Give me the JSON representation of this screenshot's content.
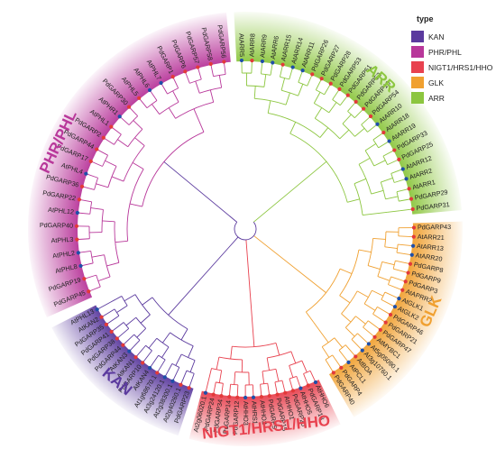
{
  "legend": {
    "title": "type",
    "items": [
      {
        "label": "KAN",
        "color": "#5b3a9e"
      },
      {
        "label": "PHR/PHL",
        "color": "#b8379a"
      },
      {
        "label": "NIGT1/HRS1/HHO",
        "color": "#e8424f"
      },
      {
        "label": "GLK",
        "color": "#f0a030"
      },
      {
        "label": "ARR",
        "color": "#8cc63f"
      }
    ]
  },
  "clades": [
    {
      "key": "ARR",
      "label": "ARR",
      "color": "#8cc63f",
      "leaves": [
        "AtARR5",
        "AtARR8",
        "AtARR9",
        "AtARR6",
        "AtARR15",
        "AtARR14",
        "AtARR11",
        "PdGARP26",
        "PdGARP27",
        "PdGARP28",
        "PdGARP53",
        "PdGARP51",
        "PdGARP52",
        "PdGARP18",
        "PdGARP54",
        "AtARR10",
        "AtARR18",
        "AtARR19",
        "PdGARP33",
        "PdGARP25",
        "AtARR12",
        "AtARR2",
        "AtARR1",
        "PdGARP29",
        "PdGARP31"
      ]
    },
    {
      "key": "GLK",
      "label": "GLK",
      "color": "#f0a030",
      "leaves": [
        "PdGARP43",
        "AtARR21",
        "AtARR13",
        "AtARR20",
        "PdGARP8",
        "PdGARP9",
        "PdGARP3",
        "AtAPRR2",
        "AtGLK1",
        "AtGLK2",
        "PdGARP46",
        "PdGARP21",
        "PdGARP47",
        "AtMYBC1",
        "At5g05090.1",
        "At3g10760.1",
        "AtBOA",
        "AtPCL1",
        "PdGARP4",
        "PdGARP40"
      ]
    },
    {
      "key": "NIGT",
      "label": "NIGT1/HRS1/HHO",
      "color": "#e8424f",
      "leaves": [
        "AtHHO6",
        "PdGARP13",
        "AtHHO5",
        "PdGARP20",
        "AtHHO1",
        "PdGARP15",
        "PdGARP5",
        "AtHHO2",
        "AtHRS1",
        "AtHHO3",
        "PdGARP12",
        "PdGARP14",
        "PdGARP34",
        "PdGARP24",
        "At2g06020.1"
      ]
    },
    {
      "key": "KAN",
      "label": "KAN",
      "color": "#5b3a9e",
      "leaves": [
        "PdGARP23",
        "At2g40260.1",
        "At2g38300.1",
        "At3g24120.1",
        "At1g68670.1",
        "AtKAN4",
        "PdGARP10",
        "AtKAN1",
        "AtKAN3",
        "PdGARP44",
        "PdGARP38",
        "PdGARP41",
        "PdGARP35",
        "AtKAN2",
        "AtPHL13"
      ]
    },
    {
      "key": "PHR",
      "label": "PHR/PHL",
      "color": "#b8379a",
      "leaves": [
        "PdGARP45",
        "PdGARP19",
        "AtPHL8",
        "AtPHL2",
        "AtPHL3",
        "PdGARP40",
        "AtPHL12",
        "PdGARP22",
        "PdGARP36",
        "AtPHL4",
        "PdGARP17",
        "PdGARP44",
        "PdGARP2",
        "AtPHL1",
        "AtPHR1",
        "PdGARP30",
        "AtPHL5",
        "AtPHL6",
        "AtPHL7",
        "PdGARP1",
        "PdGARP6",
        "PdGARP57",
        "PdGARP58",
        "PdGARP56"
      ]
    }
  ]
}
